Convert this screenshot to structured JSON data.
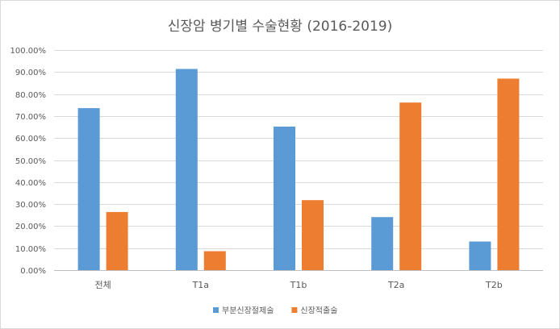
{
  "chart_data": {
    "type": "bar",
    "title": "신장암 병기별 수술현황 (2016-2019)",
    "xlabel": "",
    "ylabel": "",
    "categories": [
      "전체",
      "T1a",
      "T1b",
      "T2a",
      "T2b"
    ],
    "series": [
      {
        "name": "부분신장절제술",
        "color": "#5b9bd5",
        "values": [
          73.6,
          91.4,
          65.2,
          24.1,
          13.0
        ]
      },
      {
        "name": "신장적출술",
        "color": "#ed7d31",
        "values": [
          26.4,
          8.6,
          31.8,
          76.1,
          87.0
        ]
      }
    ],
    "ylim": [
      0,
      100
    ],
    "yticks": [
      "0.00%",
      "10.00%",
      "20.00%",
      "30.00%",
      "40.00%",
      "50.00%",
      "60.00%",
      "70.00%",
      "80.00%",
      "90.00%",
      "100.00%"
    ],
    "grid": true,
    "legend_position": "bottom"
  }
}
